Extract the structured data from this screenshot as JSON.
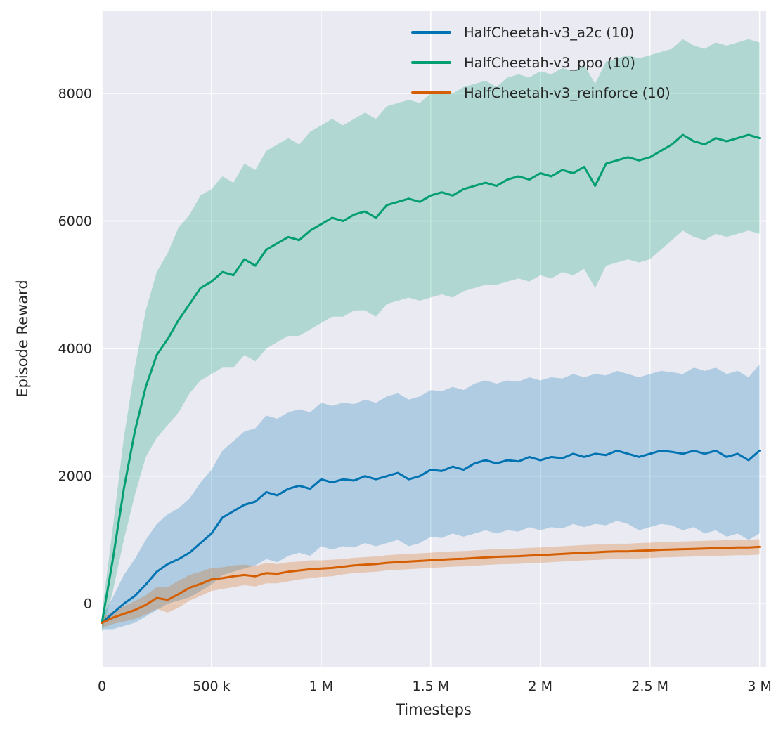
{
  "figure": {
    "xlabel": "Timesteps",
    "ylabel": "Episode Reward"
  },
  "chart_data": {
    "type": "line",
    "title": "",
    "xlabel": "Timesteps",
    "ylabel": "Episode Reward",
    "x_units": "thousand timesteps",
    "grid": true,
    "legend_position": "upper center-right",
    "plot_bg": "#eaeaf2",
    "grid_color": "#ffffff",
    "text_color": "#262626",
    "band_alpha": 0.25,
    "xlim": [
      0,
      3030
    ],
    "ylim": [
      -1000,
      9300
    ],
    "x_ticks": {
      "values": [
        0,
        500,
        1000,
        1500,
        2000,
        2500,
        3000
      ],
      "labels": [
        "0",
        "500 k",
        "1 M",
        "1.5 M",
        "2 M",
        "2.5 M",
        "3 M"
      ]
    },
    "y_ticks": {
      "values": [
        0,
        2000,
        4000,
        6000,
        8000
      ],
      "labels": [
        "0",
        "2000",
        "4000",
        "6000",
        "8000"
      ]
    },
    "x": [
      0,
      50,
      100,
      150,
      200,
      250,
      300,
      350,
      400,
      450,
      500,
      550,
      600,
      650,
      700,
      750,
      800,
      850,
      900,
      950,
      1000,
      1050,
      1100,
      1150,
      1200,
      1250,
      1300,
      1350,
      1400,
      1450,
      1500,
      1550,
      1600,
      1650,
      1700,
      1750,
      1800,
      1850,
      1900,
      1950,
      2000,
      2050,
      2100,
      2150,
      2200,
      2250,
      2300,
      2350,
      2400,
      2450,
      2500,
      2550,
      2600,
      2650,
      2700,
      2750,
      2800,
      2850,
      2900,
      2950,
      3000
    ],
    "series": [
      {
        "name": "a2c",
        "label": "HalfCheetah-v3_a2c (10)",
        "color": "#0173b2",
        "mean": [
          -300,
          -150,
          0,
          120,
          300,
          500,
          620,
          700,
          800,
          950,
          1100,
          1350,
          1450,
          1550,
          1600,
          1750,
          1700,
          1800,
          1850,
          1800,
          1950,
          1900,
          1950,
          1930,
          2000,
          1950,
          2000,
          2050,
          1950,
          2000,
          2100,
          2080,
          2150,
          2100,
          2200,
          2250,
          2200,
          2250,
          2230,
          2300,
          2250,
          2300,
          2280,
          2350,
          2300,
          2350,
          2330,
          2400,
          2350,
          2300,
          2350,
          2400,
          2380,
          2350,
          2400,
          2350,
          2400,
          2300,
          2350,
          2250,
          2400
        ],
        "lo": [
          -400,
          -400,
          -350,
          -300,
          -200,
          -100,
          0,
          50,
          100,
          200,
          300,
          450,
          500,
          550,
          600,
          700,
          650,
          750,
          800,
          750,
          900,
          850,
          900,
          880,
          950,
          900,
          950,
          1000,
          900,
          950,
          1050,
          1030,
          1100,
          1050,
          1100,
          1150,
          1100,
          1150,
          1130,
          1200,
          1150,
          1200,
          1180,
          1250,
          1200,
          1250,
          1230,
          1300,
          1250,
          1150,
          1200,
          1250,
          1230,
          1150,
          1200,
          1100,
          1150,
          1050,
          1100,
          1000,
          1100
        ],
        "hi": [
          -200,
          100,
          450,
          700,
          1000,
          1250,
          1400,
          1500,
          1650,
          1900,
          2100,
          2400,
          2550,
          2700,
          2750,
          2950,
          2900,
          3000,
          3050,
          3000,
          3150,
          3100,
          3150,
          3130,
          3200,
          3150,
          3250,
          3300,
          3200,
          3250,
          3350,
          3330,
          3400,
          3350,
          3450,
          3500,
          3450,
          3500,
          3480,
          3550,
          3500,
          3550,
          3530,
          3600,
          3550,
          3600,
          3580,
          3650,
          3600,
          3550,
          3600,
          3650,
          3630,
          3600,
          3700,
          3650,
          3700,
          3600,
          3650,
          3550,
          3750
        ]
      },
      {
        "name": "ppo",
        "label": "HalfCheetah-v3_ppo (10)",
        "color": "#029e73",
        "mean": [
          -300,
          700,
          1800,
          2700,
          3400,
          3900,
          4150,
          4450,
          4700,
          4950,
          5050,
          5200,
          5150,
          5400,
          5300,
          5550,
          5650,
          5750,
          5700,
          5850,
          5950,
          6050,
          6000,
          6100,
          6150,
          6050,
          6250,
          6300,
          6350,
          6300,
          6400,
          6450,
          6400,
          6500,
          6550,
          6600,
          6550,
          6650,
          6700,
          6650,
          6750,
          6700,
          6800,
          6750,
          6850,
          6550,
          6900,
          6950,
          7000,
          6950,
          7000,
          7100,
          7200,
          7350,
          7250,
          7200,
          7300,
          7250,
          7300,
          7350,
          7300
        ],
        "lo": [
          -450,
          200,
          1000,
          1700,
          2300,
          2600,
          2800,
          3000,
          3300,
          3500,
          3600,
          3700,
          3700,
          3900,
          3800,
          4000,
          4100,
          4200,
          4200,
          4300,
          4400,
          4500,
          4500,
          4600,
          4600,
          4500,
          4700,
          4750,
          4800,
          4750,
          4800,
          4850,
          4800,
          4900,
          4950,
          5000,
          5000,
          5050,
          5100,
          5050,
          5150,
          5100,
          5200,
          5150,
          5250,
          4950,
          5300,
          5350,
          5400,
          5350,
          5400,
          5550,
          5700,
          5850,
          5750,
          5700,
          5800,
          5750,
          5800,
          5850,
          5800
        ],
        "hi": [
          -150,
          1200,
          2600,
          3700,
          4600,
          5200,
          5500,
          5900,
          6100,
          6400,
          6500,
          6700,
          6600,
          6900,
          6800,
          7100,
          7200,
          7300,
          7200,
          7400,
          7500,
          7600,
          7500,
          7600,
          7700,
          7600,
          7800,
          7850,
          7900,
          7850,
          8000,
          8050,
          8000,
          8100,
          8150,
          8200,
          8100,
          8250,
          8300,
          8250,
          8350,
          8300,
          8400,
          8350,
          8450,
          8150,
          8500,
          8550,
          8600,
          8550,
          8600,
          8650,
          8700,
          8850,
          8750,
          8700,
          8800,
          8750,
          8800,
          8850,
          8800
        ]
      },
      {
        "name": "reinforce",
        "label": "HalfCheetah-v3_reinforce (10)",
        "color": "#d55e00",
        "mean": [
          -300,
          -220,
          -160,
          -100,
          -20,
          90,
          60,
          150,
          250,
          310,
          380,
          400,
          430,
          450,
          430,
          480,
          470,
          500,
          520,
          540,
          550,
          560,
          580,
          600,
          610,
          620,
          640,
          650,
          660,
          670,
          680,
          690,
          700,
          705,
          715,
          725,
          735,
          740,
          745,
          755,
          760,
          770,
          780,
          790,
          800,
          805,
          815,
          820,
          820,
          830,
          835,
          845,
          850,
          855,
          860,
          865,
          870,
          875,
          880,
          880,
          890
        ],
        "lo": [
          -380,
          -320,
          -280,
          -240,
          -170,
          -80,
          -140,
          -60,
          50,
          120,
          200,
          230,
          260,
          290,
          270,
          320,
          320,
          350,
          380,
          400,
          420,
          430,
          460,
          480,
          490,
          500,
          520,
          530,
          540,
          550,
          560,
          570,
          580,
          585,
          595,
          605,
          615,
          620,
          625,
          635,
          640,
          650,
          660,
          670,
          680,
          685,
          695,
          700,
          700,
          710,
          715,
          725,
          730,
          735,
          740,
          745,
          750,
          755,
          760,
          760,
          770
        ],
        "hi": [
          -220,
          -120,
          -40,
          40,
          130,
          260,
          260,
          360,
          450,
          500,
          560,
          570,
          600,
          610,
          590,
          640,
          620,
          650,
          660,
          680,
          680,
          690,
          700,
          720,
          730,
          740,
          760,
          770,
          780,
          790,
          800,
          810,
          820,
          825,
          835,
          845,
          855,
          860,
          865,
          875,
          880,
          890,
          900,
          910,
          920,
          925,
          935,
          940,
          940,
          950,
          955,
          965,
          970,
          975,
          980,
          985,
          990,
          995,
          1000,
          1000,
          1010
        ]
      }
    ]
  }
}
